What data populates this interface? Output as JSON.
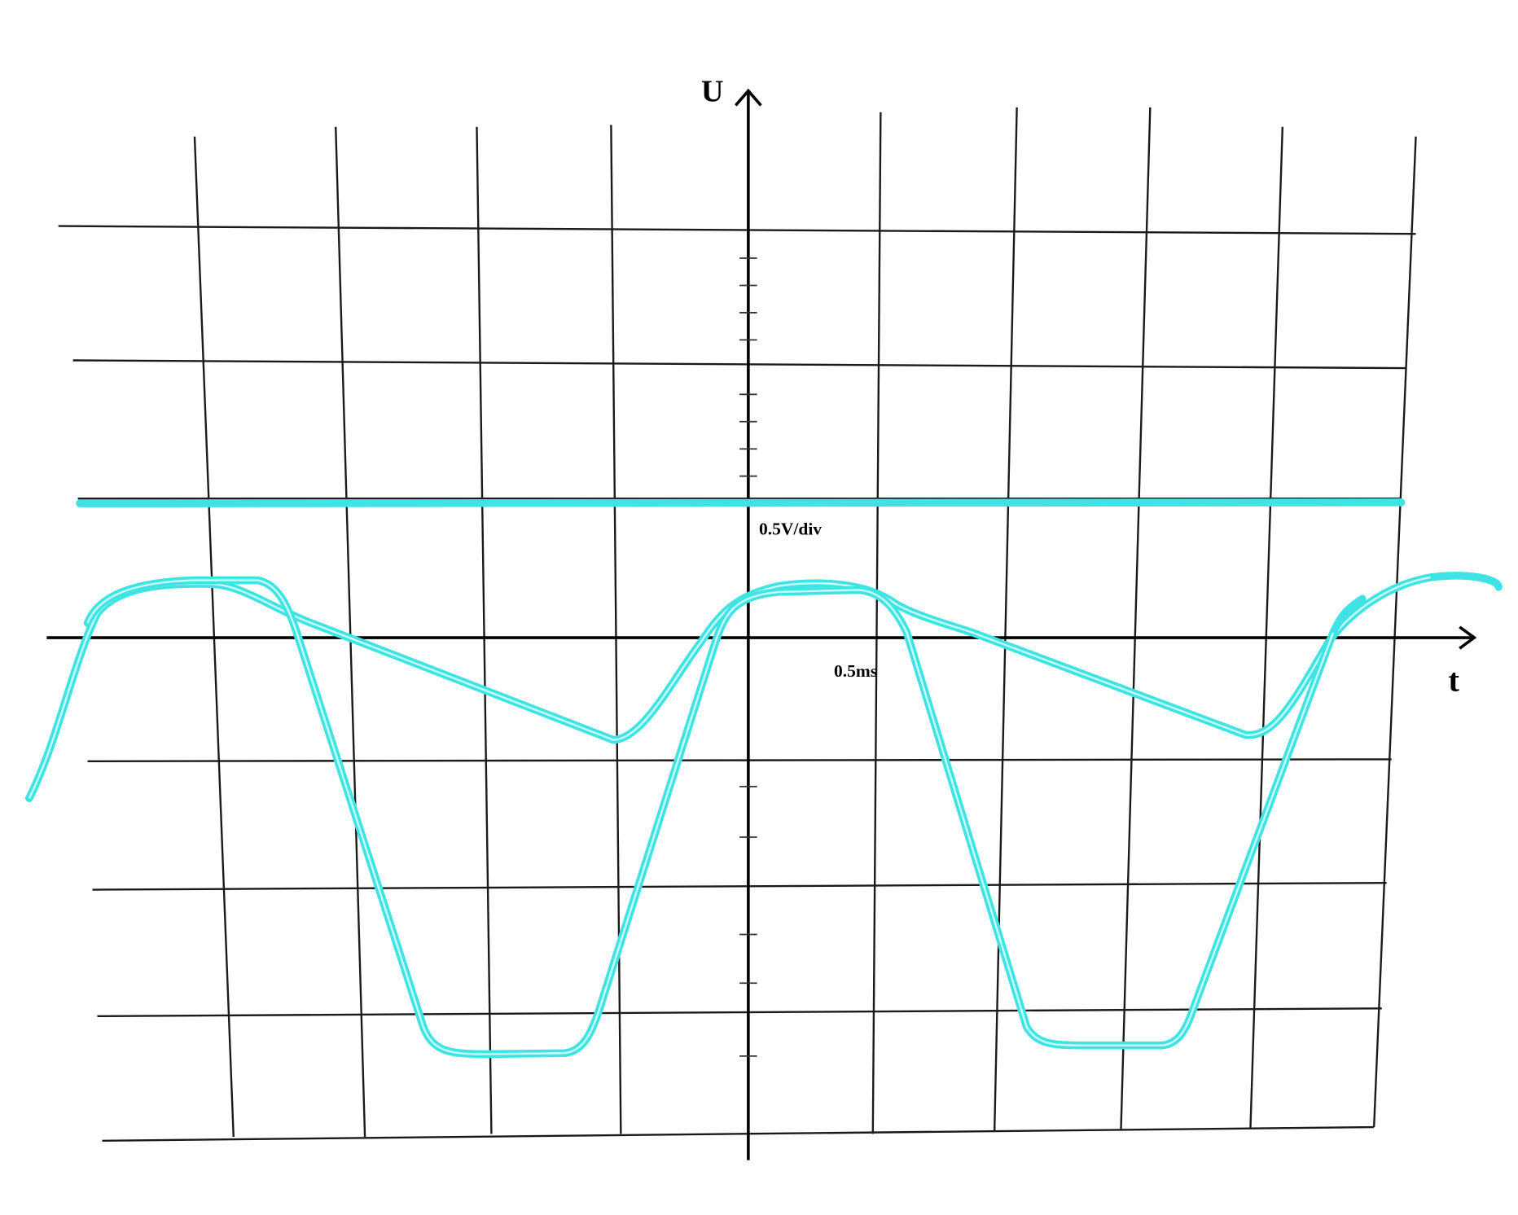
{
  "axes": {
    "vertical_label": "U",
    "horizontal_label": "t"
  },
  "scale": {
    "vertical": "0.5V/div",
    "horizontal": "0.5ms"
  }
}
